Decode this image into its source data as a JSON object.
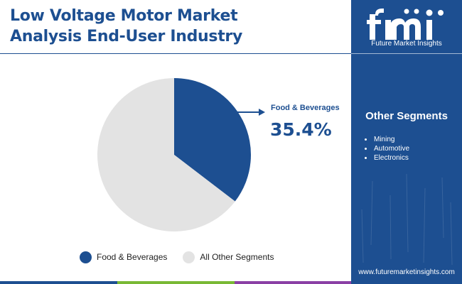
{
  "header": {
    "title_line1": "Low Voltage Motor Market",
    "title_line2": "Analysis End-User Industry"
  },
  "brand": {
    "logo_text": "fmi",
    "name": "Future Market Insights",
    "website": "www.futuremarketinsights.com"
  },
  "other_segments": {
    "title": "Other Segments",
    "items": [
      "Mining",
      "Automotive",
      "Electronics"
    ]
  },
  "callout": {
    "label": "Food & Beverages",
    "value": "35.4%"
  },
  "colors": {
    "primary": "#1d4f91",
    "secondary": "#e3e3e3",
    "bar_green": "#79b935",
    "bar_purple": "#8a3fa5"
  },
  "chart_data": {
    "type": "pie",
    "title": "Low Voltage Motor Market Analysis End-User Industry",
    "labels": [
      "Food & Beverages",
      "All Other Segments"
    ],
    "values": [
      35.4,
      64.6
    ],
    "colors": [
      "#1d4f91",
      "#e3e3e3"
    ],
    "start_angle_deg": 0,
    "direction": "clockwise",
    "legend_position": "bottom"
  }
}
